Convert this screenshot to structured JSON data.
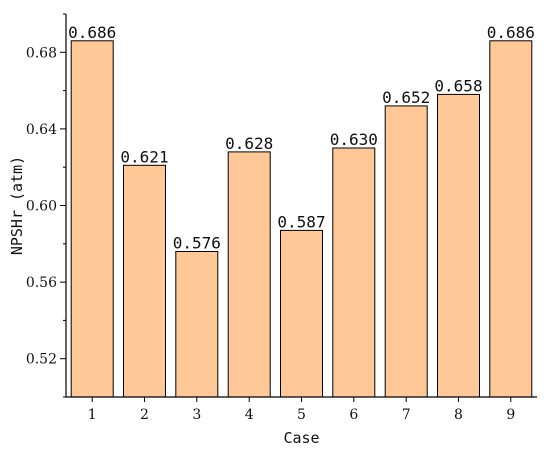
{
  "chart_data": {
    "type": "bar",
    "title": "",
    "xlabel": "Case",
    "ylabel": "NPSHr (atm)",
    "categories": [
      "1",
      "2",
      "3",
      "4",
      "5",
      "6",
      "7",
      "8",
      "9"
    ],
    "values": [
      0.686,
      0.621,
      0.576,
      0.628,
      0.587,
      0.63,
      0.652,
      0.658,
      0.686
    ],
    "value_labels": [
      "0.686",
      "0.621",
      "0.576",
      "0.628",
      "0.587",
      "0.630",
      "0.652",
      "0.658",
      "0.686"
    ],
    "ylim": [
      0.5,
      0.7
    ],
    "yticks": [
      0.52,
      0.56,
      0.6,
      0.64,
      0.68
    ],
    "ytick_labels": [
      "0.52",
      "0.56",
      "0.60",
      "0.64",
      "0.68"
    ],
    "grid": false,
    "legend": "none",
    "colors": {
      "bar_fill": "#FFC896",
      "bar_stroke": "#000000",
      "axis": "#000000"
    }
  }
}
